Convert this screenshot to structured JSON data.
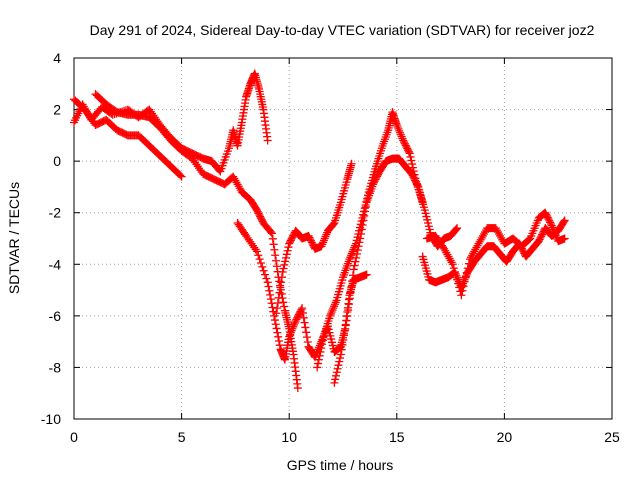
{
  "chart_data": {
    "type": "scatter",
    "title": "Day 291 of 2024, Sidereal Day-to-day VTEC variation (SDTVAR) for receiver joz2",
    "xlabel": "GPS time / hours",
    "ylabel": "SDTVAR / TECUs",
    "xlim": [
      0,
      25
    ],
    "ylim": [
      -10,
      4
    ],
    "xticks": [
      0,
      5,
      10,
      15,
      20,
      25
    ],
    "yticks": [
      -10,
      -8,
      -6,
      -4,
      -2,
      0,
      2,
      4
    ],
    "grid": true,
    "marker": "plus",
    "color": "#ff0000",
    "series": [
      {
        "points": [
          [
            0.0,
            1.5
          ],
          [
            0.4,
            2.2
          ],
          [
            0.8,
            1.6
          ],
          [
            1.3,
            2.1
          ],
          [
            1.8,
            1.8
          ],
          [
            2.5,
            2.0
          ],
          [
            3.0,
            1.7
          ],
          [
            3.5,
            2.0
          ],
          [
            4.0,
            1.4
          ],
          [
            4.5,
            0.9
          ],
          [
            5.0,
            0.5
          ],
          [
            5.5,
            0.3
          ],
          [
            6.0,
            0.1
          ],
          [
            6.4,
            0.0
          ],
          [
            6.8,
            -0.4
          ],
          [
            7.2,
            0.5
          ],
          [
            7.4,
            1.2
          ],
          [
            7.6,
            0.6
          ],
          [
            7.8,
            1.5
          ],
          [
            8.0,
            2.5
          ],
          [
            8.2,
            3.0
          ],
          [
            8.4,
            3.4
          ],
          [
            8.6,
            2.8
          ],
          [
            8.8,
            2.0
          ],
          [
            9.0,
            0.8
          ]
        ]
      },
      {
        "points": [
          [
            0.0,
            2.4
          ],
          [
            0.5,
            2.0
          ],
          [
            1.0,
            1.4
          ],
          [
            1.5,
            1.6
          ],
          [
            2.0,
            1.2
          ],
          [
            2.5,
            1.0
          ],
          [
            3.0,
            1.0
          ],
          [
            3.5,
            0.6
          ],
          [
            4.0,
            0.2
          ],
          [
            4.5,
            -0.2
          ],
          [
            5.0,
            -0.6
          ]
        ]
      },
      {
        "points": [
          [
            1.0,
            2.6
          ],
          [
            1.5,
            2.2
          ],
          [
            2.0,
            1.9
          ],
          [
            2.5,
            1.8
          ],
          [
            3.0,
            1.8
          ],
          [
            3.5,
            1.7
          ],
          [
            4.0,
            1.3
          ],
          [
            4.5,
            0.8
          ],
          [
            5.0,
            0.4
          ],
          [
            5.5,
            0.1
          ],
          [
            6.0,
            -0.5
          ],
          [
            6.5,
            -0.7
          ],
          [
            7.0,
            -0.9
          ],
          [
            7.4,
            -0.6
          ],
          [
            7.8,
            -1.2
          ],
          [
            8.2,
            -1.5
          ],
          [
            8.5,
            -1.9
          ],
          [
            8.8,
            -2.4
          ],
          [
            9.2,
            -2.8
          ],
          [
            9.5,
            -4.5
          ],
          [
            9.8,
            -5.8
          ],
          [
            10.0,
            -6.5
          ],
          [
            10.2,
            -7.5
          ],
          [
            10.4,
            -8.8
          ]
        ]
      },
      {
        "points": [
          [
            7.6,
            -2.4
          ],
          [
            8.0,
            -2.9
          ],
          [
            8.5,
            -3.5
          ],
          [
            9.0,
            -4.7
          ],
          [
            9.3,
            -6.0
          ],
          [
            9.6,
            -7.3
          ],
          [
            9.8,
            -7.7
          ],
          [
            10.0,
            -6.8
          ],
          [
            10.3,
            -6.2
          ],
          [
            10.6,
            -5.7
          ],
          [
            10.9,
            -7.2
          ],
          [
            11.2,
            -7.6
          ],
          [
            11.5,
            -7.0
          ],
          [
            11.8,
            -6.4
          ],
          [
            12.1,
            -7.4
          ],
          [
            12.4,
            -7.2
          ],
          [
            12.6,
            -6.5
          ],
          [
            12.8,
            -5.2
          ],
          [
            13.0,
            -4.6
          ],
          [
            13.3,
            -4.5
          ],
          [
            13.6,
            -4.4
          ]
        ]
      },
      {
        "points": [
          [
            9.4,
            -5.9
          ],
          [
            9.7,
            -4.3
          ],
          [
            10.0,
            -3.2
          ],
          [
            10.3,
            -2.7
          ],
          [
            10.6,
            -3.0
          ],
          [
            10.9,
            -2.9
          ],
          [
            11.2,
            -3.4
          ],
          [
            11.5,
            -3.3
          ],
          [
            11.8,
            -2.7
          ],
          [
            12.1,
            -2.4
          ],
          [
            12.4,
            -1.6
          ],
          [
            12.7,
            -0.7
          ],
          [
            12.9,
            -0.1
          ]
        ]
      },
      {
        "points": [
          [
            11.3,
            -8.0
          ],
          [
            11.6,
            -6.8
          ],
          [
            11.9,
            -6.0
          ],
          [
            12.2,
            -5.4
          ],
          [
            12.5,
            -4.5
          ],
          [
            12.8,
            -3.8
          ],
          [
            13.1,
            -3.2
          ],
          [
            13.4,
            -2.2
          ],
          [
            13.7,
            -1.2
          ],
          [
            14.0,
            -0.3
          ],
          [
            14.3,
            0.5
          ],
          [
            14.6,
            1.2
          ],
          [
            14.8,
            1.9
          ],
          [
            15.0,
            1.4
          ],
          [
            15.3,
            0.8
          ],
          [
            15.6,
            0.3
          ],
          [
            15.9,
            -0.8
          ],
          [
            16.2,
            -1.6
          ]
        ]
      },
      {
        "points": [
          [
            12.1,
            -8.6
          ],
          [
            12.4,
            -7.5
          ],
          [
            12.7,
            -6.0
          ],
          [
            13.0,
            -4.2
          ],
          [
            13.3,
            -3.0
          ],
          [
            13.6,
            -1.6
          ],
          [
            13.9,
            -0.9
          ],
          [
            14.2,
            -0.4
          ],
          [
            14.5,
            0.0
          ],
          [
            14.8,
            0.1
          ],
          [
            15.1,
            0.1
          ],
          [
            15.4,
            -0.2
          ],
          [
            15.7,
            -0.5
          ],
          [
            16.0,
            -1.0
          ],
          [
            16.3,
            -1.9
          ],
          [
            16.6,
            -2.9
          ],
          [
            16.9,
            -3.3
          ],
          [
            17.2,
            -3.0
          ],
          [
            17.5,
            -2.9
          ],
          [
            17.8,
            -2.6
          ]
        ]
      },
      {
        "points": [
          [
            16.2,
            -3.7
          ],
          [
            16.5,
            -4.6
          ],
          [
            16.8,
            -4.7
          ],
          [
            17.1,
            -4.6
          ],
          [
            17.4,
            -4.5
          ],
          [
            17.7,
            -4.3
          ],
          [
            18.0,
            -4.9
          ],
          [
            18.3,
            -4.3
          ],
          [
            18.6,
            -3.9
          ],
          [
            18.9,
            -3.6
          ],
          [
            19.2,
            -3.3
          ],
          [
            19.5,
            -3.3
          ],
          [
            19.8,
            -3.6
          ],
          [
            20.1,
            -3.9
          ],
          [
            20.4,
            -3.5
          ],
          [
            20.7,
            -3.2
          ],
          [
            21.0,
            -3.7
          ],
          [
            21.3,
            -3.4
          ],
          [
            21.6,
            -3.1
          ],
          [
            21.9,
            -2.6
          ],
          [
            22.2,
            -2.9
          ],
          [
            22.5,
            -2.7
          ],
          [
            22.8,
            -2.3
          ]
        ]
      },
      {
        "points": [
          [
            16.4,
            -3.0
          ],
          [
            16.8,
            -2.9
          ],
          [
            17.2,
            -3.4
          ],
          [
            17.6,
            -4.0
          ],
          [
            18.0,
            -5.2
          ],
          [
            18.4,
            -3.8
          ],
          [
            18.8,
            -3.2
          ],
          [
            19.2,
            -2.6
          ],
          [
            19.6,
            -2.6
          ],
          [
            20.0,
            -3.2
          ],
          [
            20.4,
            -3.0
          ],
          [
            20.8,
            -3.3
          ],
          [
            21.2,
            -3.0
          ],
          [
            21.6,
            -2.2
          ],
          [
            21.9,
            -2.0
          ],
          [
            22.2,
            -2.5
          ],
          [
            22.5,
            -3.1
          ],
          [
            22.8,
            -3.0
          ]
        ]
      }
    ]
  }
}
